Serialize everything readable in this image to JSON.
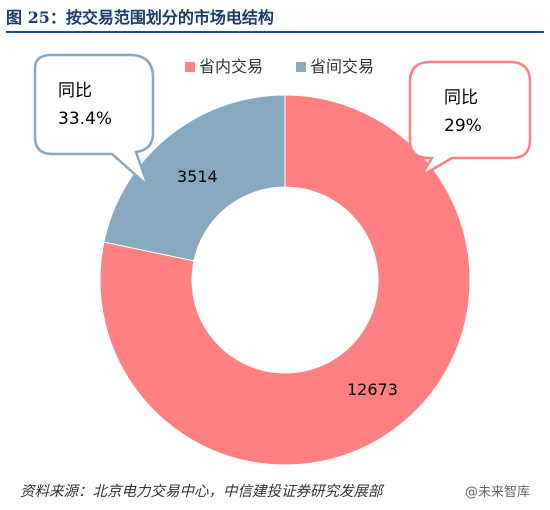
{
  "figure": {
    "title": "图 25：按交易范围划分的市场电结构",
    "source": "资料来源：北京电力交易中心，中信建投证券研究发展部",
    "watermark": "@未来智库"
  },
  "colors": {
    "province_inner": "#ff8080",
    "province_inter": "#88a8c0",
    "title_rule": "#1f4e8c",
    "callout_red": "#ff8080",
    "callout_blue": "#88a8c0"
  },
  "chart_data": {
    "type": "pie",
    "donut": true,
    "title": "",
    "legend_position": "top-right",
    "series": [
      {
        "name": "省内交易",
        "value": 12673,
        "label": "12673",
        "yoy_label": "同比",
        "yoy_value": "29%",
        "color": "#ff8080"
      },
      {
        "name": "省间交易",
        "value": 3514,
        "label": "3514",
        "yoy_label": "同比",
        "yoy_value": "33.4%",
        "color": "#88a8c0"
      }
    ]
  }
}
